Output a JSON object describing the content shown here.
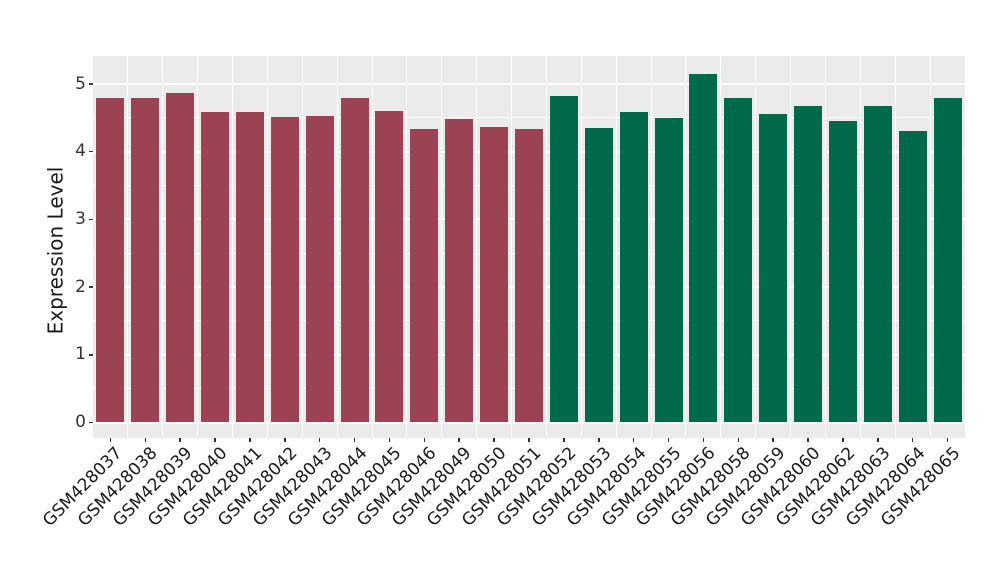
{
  "figure": {
    "background": "#FFFFFF",
    "panel_background": "#EBEBEB",
    "grid_color": "#FFFFFF",
    "axis_text_color": "#333333",
    "tick_color": "#333333"
  },
  "chart_data": {
    "type": "bar",
    "title": "",
    "xlabel": "",
    "ylabel": "Expression Level",
    "ylim": [
      0,
      5.4
    ],
    "yticks": [
      0,
      1,
      2,
      3,
      4,
      5
    ],
    "grid": true,
    "legend": false,
    "x_label_rotation_deg": 45,
    "categories": [
      "GSM428037",
      "GSM428038",
      "GSM428039",
      "GSM428040",
      "GSM428041",
      "GSM428042",
      "GSM428043",
      "GSM428044",
      "GSM428045",
      "GSM428046",
      "GSM428049",
      "GSM428050",
      "GSM428051",
      "GSM428052",
      "GSM428053",
      "GSM428054",
      "GSM428055",
      "GSM428056",
      "GSM428058",
      "GSM428059",
      "GSM428060",
      "GSM428062",
      "GSM428063",
      "GSM428064",
      "GSM428065"
    ],
    "values": [
      4.8,
      4.8,
      4.86,
      4.59,
      4.59,
      4.51,
      4.53,
      4.8,
      4.6,
      4.34,
      4.49,
      4.37,
      4.34,
      4.82,
      4.35,
      4.58,
      4.5,
      5.15,
      4.79,
      4.56,
      4.67,
      4.46,
      4.67,
      4.31,
      4.79
    ],
    "groups": [
      "group1",
      "group1",
      "group1",
      "group1",
      "group1",
      "group1",
      "group1",
      "group1",
      "group1",
      "group1",
      "group1",
      "group1",
      "group1",
      "group2",
      "group2",
      "group2",
      "group2",
      "group2",
      "group2",
      "group2",
      "group2",
      "group2",
      "group2",
      "group2",
      "group2"
    ],
    "group_colors": {
      "group1": "#9C4353",
      "group2": "#00694B"
    },
    "series": [
      {
        "name": "group1",
        "color": "#9C4353",
        "count": 13
      },
      {
        "name": "group2",
        "color": "#00694B",
        "count": 12
      }
    ]
  }
}
